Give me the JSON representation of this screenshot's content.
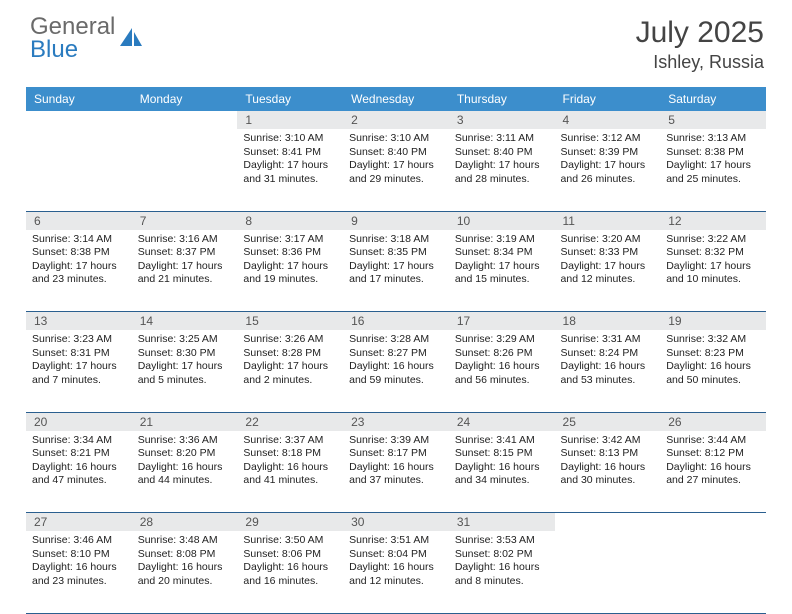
{
  "logo": {
    "line1": "General",
    "line2": "Blue"
  },
  "title": {
    "month": "July 2025",
    "location": "Ishley, Russia"
  },
  "colors": {
    "header_bg": "#3c8ecc",
    "daynum_bg": "#e8e9ea",
    "rule": "#2a5f8f",
    "logo_blue": "#2a7bbf"
  },
  "weekdays": [
    "Sunday",
    "Monday",
    "Tuesday",
    "Wednesday",
    "Thursday",
    "Friday",
    "Saturday"
  ],
  "weeks": [
    {
      "nums": [
        "",
        "",
        "1",
        "2",
        "3",
        "4",
        "5"
      ],
      "cells": [
        null,
        null,
        {
          "sr": "Sunrise: 3:10 AM",
          "ss": "Sunset: 8:41 PM",
          "d1": "Daylight: 17 hours",
          "d2": "and 31 minutes."
        },
        {
          "sr": "Sunrise: 3:10 AM",
          "ss": "Sunset: 8:40 PM",
          "d1": "Daylight: 17 hours",
          "d2": "and 29 minutes."
        },
        {
          "sr": "Sunrise: 3:11 AM",
          "ss": "Sunset: 8:40 PM",
          "d1": "Daylight: 17 hours",
          "d2": "and 28 minutes."
        },
        {
          "sr": "Sunrise: 3:12 AM",
          "ss": "Sunset: 8:39 PM",
          "d1": "Daylight: 17 hours",
          "d2": "and 26 minutes."
        },
        {
          "sr": "Sunrise: 3:13 AM",
          "ss": "Sunset: 8:38 PM",
          "d1": "Daylight: 17 hours",
          "d2": "and 25 minutes."
        }
      ]
    },
    {
      "nums": [
        "6",
        "7",
        "8",
        "9",
        "10",
        "11",
        "12"
      ],
      "cells": [
        {
          "sr": "Sunrise: 3:14 AM",
          "ss": "Sunset: 8:38 PM",
          "d1": "Daylight: 17 hours",
          "d2": "and 23 minutes."
        },
        {
          "sr": "Sunrise: 3:16 AM",
          "ss": "Sunset: 8:37 PM",
          "d1": "Daylight: 17 hours",
          "d2": "and 21 minutes."
        },
        {
          "sr": "Sunrise: 3:17 AM",
          "ss": "Sunset: 8:36 PM",
          "d1": "Daylight: 17 hours",
          "d2": "and 19 minutes."
        },
        {
          "sr": "Sunrise: 3:18 AM",
          "ss": "Sunset: 8:35 PM",
          "d1": "Daylight: 17 hours",
          "d2": "and 17 minutes."
        },
        {
          "sr": "Sunrise: 3:19 AM",
          "ss": "Sunset: 8:34 PM",
          "d1": "Daylight: 17 hours",
          "d2": "and 15 minutes."
        },
        {
          "sr": "Sunrise: 3:20 AM",
          "ss": "Sunset: 8:33 PM",
          "d1": "Daylight: 17 hours",
          "d2": "and 12 minutes."
        },
        {
          "sr": "Sunrise: 3:22 AM",
          "ss": "Sunset: 8:32 PM",
          "d1": "Daylight: 17 hours",
          "d2": "and 10 minutes."
        }
      ]
    },
    {
      "nums": [
        "13",
        "14",
        "15",
        "16",
        "17",
        "18",
        "19"
      ],
      "cells": [
        {
          "sr": "Sunrise: 3:23 AM",
          "ss": "Sunset: 8:31 PM",
          "d1": "Daylight: 17 hours",
          "d2": "and 7 minutes."
        },
        {
          "sr": "Sunrise: 3:25 AM",
          "ss": "Sunset: 8:30 PM",
          "d1": "Daylight: 17 hours",
          "d2": "and 5 minutes."
        },
        {
          "sr": "Sunrise: 3:26 AM",
          "ss": "Sunset: 8:28 PM",
          "d1": "Daylight: 17 hours",
          "d2": "and 2 minutes."
        },
        {
          "sr": "Sunrise: 3:28 AM",
          "ss": "Sunset: 8:27 PM",
          "d1": "Daylight: 16 hours",
          "d2": "and 59 minutes."
        },
        {
          "sr": "Sunrise: 3:29 AM",
          "ss": "Sunset: 8:26 PM",
          "d1": "Daylight: 16 hours",
          "d2": "and 56 minutes."
        },
        {
          "sr": "Sunrise: 3:31 AM",
          "ss": "Sunset: 8:24 PM",
          "d1": "Daylight: 16 hours",
          "d2": "and 53 minutes."
        },
        {
          "sr": "Sunrise: 3:32 AM",
          "ss": "Sunset: 8:23 PM",
          "d1": "Daylight: 16 hours",
          "d2": "and 50 minutes."
        }
      ]
    },
    {
      "nums": [
        "20",
        "21",
        "22",
        "23",
        "24",
        "25",
        "26"
      ],
      "cells": [
        {
          "sr": "Sunrise: 3:34 AM",
          "ss": "Sunset: 8:21 PM",
          "d1": "Daylight: 16 hours",
          "d2": "and 47 minutes."
        },
        {
          "sr": "Sunrise: 3:36 AM",
          "ss": "Sunset: 8:20 PM",
          "d1": "Daylight: 16 hours",
          "d2": "and 44 minutes."
        },
        {
          "sr": "Sunrise: 3:37 AM",
          "ss": "Sunset: 8:18 PM",
          "d1": "Daylight: 16 hours",
          "d2": "and 41 minutes."
        },
        {
          "sr": "Sunrise: 3:39 AM",
          "ss": "Sunset: 8:17 PM",
          "d1": "Daylight: 16 hours",
          "d2": "and 37 minutes."
        },
        {
          "sr": "Sunrise: 3:41 AM",
          "ss": "Sunset: 8:15 PM",
          "d1": "Daylight: 16 hours",
          "d2": "and 34 minutes."
        },
        {
          "sr": "Sunrise: 3:42 AM",
          "ss": "Sunset: 8:13 PM",
          "d1": "Daylight: 16 hours",
          "d2": "and 30 minutes."
        },
        {
          "sr": "Sunrise: 3:44 AM",
          "ss": "Sunset: 8:12 PM",
          "d1": "Daylight: 16 hours",
          "d2": "and 27 minutes."
        }
      ]
    },
    {
      "nums": [
        "27",
        "28",
        "29",
        "30",
        "31",
        "",
        ""
      ],
      "cells": [
        {
          "sr": "Sunrise: 3:46 AM",
          "ss": "Sunset: 8:10 PM",
          "d1": "Daylight: 16 hours",
          "d2": "and 23 minutes."
        },
        {
          "sr": "Sunrise: 3:48 AM",
          "ss": "Sunset: 8:08 PM",
          "d1": "Daylight: 16 hours",
          "d2": "and 20 minutes."
        },
        {
          "sr": "Sunrise: 3:50 AM",
          "ss": "Sunset: 8:06 PM",
          "d1": "Daylight: 16 hours",
          "d2": "and 16 minutes."
        },
        {
          "sr": "Sunrise: 3:51 AM",
          "ss": "Sunset: 8:04 PM",
          "d1": "Daylight: 16 hours",
          "d2": "and 12 minutes."
        },
        {
          "sr": "Sunrise: 3:53 AM",
          "ss": "Sunset: 8:02 PM",
          "d1": "Daylight: 16 hours",
          "d2": "and 8 minutes."
        },
        null,
        null
      ]
    }
  ]
}
